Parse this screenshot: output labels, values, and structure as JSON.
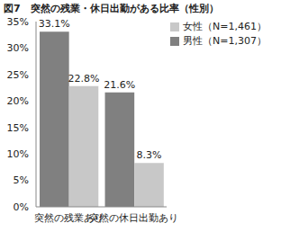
{
  "chart_data": {
    "type": "bar",
    "title": "図7　突然の残業・休日出勤がある比率（性別）",
    "categories": [
      "突然の残業あり",
      "突然の休日出勤あり"
    ],
    "series": [
      {
        "name": "男性（N=1,307）",
        "color": "#808080",
        "values": [
          33.1,
          21.6
        ],
        "value_labels": [
          "33.1%",
          "21.6%"
        ]
      },
      {
        "name": "女性（N=1,461）",
        "color": "#c8c8c8",
        "values": [
          22.8,
          8.3
        ],
        "value_labels": [
          "22.8%",
          "8.3%"
        ]
      }
    ],
    "ylim": [
      0,
      35
    ],
    "yticks": [
      {
        "value": 0,
        "label": "0%"
      },
      {
        "value": 5,
        "label": "5%"
      },
      {
        "value": 10,
        "label": "10%"
      },
      {
        "value": 15,
        "label": "15%"
      },
      {
        "value": 20,
        "label": "20%"
      },
      {
        "value": 25,
        "label": "25%"
      },
      {
        "value": 30,
        "label": "30%"
      },
      {
        "value": 35,
        "label": "35%"
      }
    ],
    "grid": false,
    "legend": "upper right",
    "data_labels": true
  }
}
